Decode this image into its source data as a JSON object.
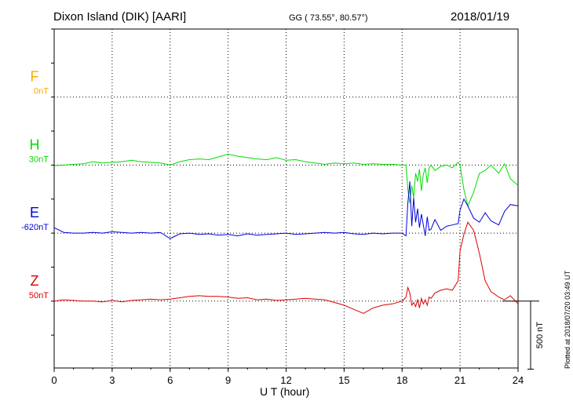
{
  "header": {
    "title": "Dixon Island (DIK)  [AARI]",
    "coords": "GG ( 73.55°,  80.57°)",
    "date": "2018/01/19"
  },
  "footer": {
    "plotted": "Plotted at 2018/07/20 03:49 UT"
  },
  "colors": {
    "F": "#ffaa00",
    "H": "#00dd00",
    "E": "#0000dd",
    "Z": "#dd0000",
    "axis": "#000000"
  },
  "chart_data": {
    "type": "line",
    "xlabel": "U T (hour)",
    "xlim": [
      0,
      24
    ],
    "xticks": [
      "0",
      "3",
      "6",
      "9",
      "12",
      "15",
      "18",
      "21",
      "24"
    ],
    "scale_bar_label": "500 nT",
    "series": [
      {
        "name": "F",
        "offset": "0nT",
        "baseline_row": 1,
        "x": [],
        "y": []
      },
      {
        "name": "H",
        "offset": "30nT",
        "baseline_row": 2,
        "x": [
          0,
          0.5,
          1,
          1.5,
          2,
          2.5,
          3,
          3.5,
          4,
          4.5,
          5,
          5.5,
          6,
          6.5,
          7,
          7.5,
          8,
          8.5,
          9,
          9.5,
          10,
          10.5,
          11,
          11.5,
          12,
          12.5,
          13,
          13.5,
          14,
          14.5,
          15,
          15.5,
          16,
          16.5,
          17,
          17.5,
          18,
          18.2,
          18.3,
          18.4,
          18.5,
          18.6,
          18.7,
          18.8,
          18.9,
          19,
          19.1,
          19.2,
          19.3,
          19.4,
          19.5,
          19.7,
          20,
          20.3,
          20.6,
          20.9,
          21,
          21.2,
          21.4,
          21.7,
          22,
          22.3,
          22.6,
          23,
          23.3,
          23.6,
          24
        ],
        "y": [
          -5,
          0,
          5,
          10,
          25,
          15,
          20,
          25,
          35,
          25,
          20,
          15,
          0,
          25,
          40,
          45,
          40,
          60,
          80,
          65,
          55,
          45,
          40,
          55,
          35,
          40,
          25,
          15,
          5,
          15,
          10,
          15,
          5,
          10,
          5,
          5,
          0,
          0,
          -180,
          -280,
          -150,
          -240,
          -60,
          -120,
          -30,
          -190,
          -70,
          -20,
          -130,
          -20,
          0,
          -40,
          -10,
          0,
          -20,
          20,
          0,
          -180,
          -300,
          -200,
          -60,
          -40,
          0,
          -60,
          10,
          -100,
          -150
        ]
      },
      {
        "name": "E",
        "offset": "-620nT",
        "baseline_row": 3,
        "x": [
          0,
          0.5,
          1,
          1.5,
          2,
          2.5,
          3,
          3.5,
          4,
          4.5,
          5,
          5.5,
          6,
          6.5,
          7,
          7.5,
          8,
          8.5,
          9,
          9.5,
          10,
          10.5,
          11,
          11.5,
          12,
          12.5,
          13,
          13.5,
          14,
          14.5,
          15,
          15.5,
          16,
          16.5,
          17,
          17.5,
          18,
          18.2,
          18.3,
          18.4,
          18.5,
          18.6,
          18.7,
          18.8,
          18.9,
          19,
          19.1,
          19.2,
          19.3,
          19.4,
          19.5,
          19.7,
          20,
          20.3,
          20.6,
          20.9,
          21,
          21.2,
          21.4,
          21.7,
          22,
          22.3,
          22.6,
          23,
          23.3,
          23.6,
          24
        ],
        "y": [
          40,
          5,
          0,
          0,
          5,
          0,
          10,
          5,
          0,
          5,
          0,
          5,
          -40,
          -5,
          0,
          -10,
          -5,
          -15,
          -10,
          -20,
          -5,
          -15,
          -10,
          -5,
          0,
          -10,
          -5,
          0,
          5,
          0,
          5,
          -5,
          -10,
          0,
          -5,
          0,
          0,
          -20,
          220,
          380,
          50,
          260,
          80,
          180,
          40,
          140,
          60,
          -20,
          120,
          20,
          30,
          100,
          20,
          50,
          60,
          70,
          170,
          250,
          200,
          110,
          80,
          150,
          90,
          60,
          160,
          210,
          200
        ]
      },
      {
        "name": "Z",
        "offset": "50nT",
        "baseline_row": 4,
        "x": [
          0,
          0.5,
          1,
          1.5,
          2,
          2.5,
          3,
          3.5,
          4,
          4.5,
          5,
          5.5,
          6,
          6.5,
          7,
          7.5,
          8,
          8.5,
          9,
          9.5,
          10,
          10.5,
          11,
          11.5,
          12,
          12.5,
          13,
          13.5,
          14,
          14.5,
          15,
          15.5,
          16,
          16.5,
          17,
          17.5,
          18,
          18.2,
          18.3,
          18.4,
          18.5,
          18.6,
          18.7,
          18.8,
          18.9,
          19,
          19.1,
          19.2,
          19.3,
          19.4,
          19.5,
          19.7,
          20,
          20.3,
          20.6,
          20.9,
          21,
          21.2,
          21.4,
          21.7,
          22,
          22.3,
          22.6,
          23,
          23.3,
          23.6,
          24
        ],
        "y": [
          0,
          10,
          5,
          0,
          0,
          -5,
          5,
          -5,
          5,
          10,
          15,
          10,
          15,
          25,
          35,
          40,
          35,
          35,
          30,
          20,
          25,
          10,
          15,
          5,
          10,
          15,
          20,
          15,
          10,
          -10,
          -30,
          -60,
          -90,
          -50,
          -30,
          -20,
          0,
          30,
          100,
          60,
          -30,
          -10,
          -40,
          10,
          -50,
          20,
          -20,
          10,
          -30,
          30,
          20,
          60,
          80,
          90,
          80,
          150,
          370,
          490,
          580,
          520,
          350,
          150,
          70,
          30,
          10,
          40,
          -20
        ]
      }
    ]
  }
}
